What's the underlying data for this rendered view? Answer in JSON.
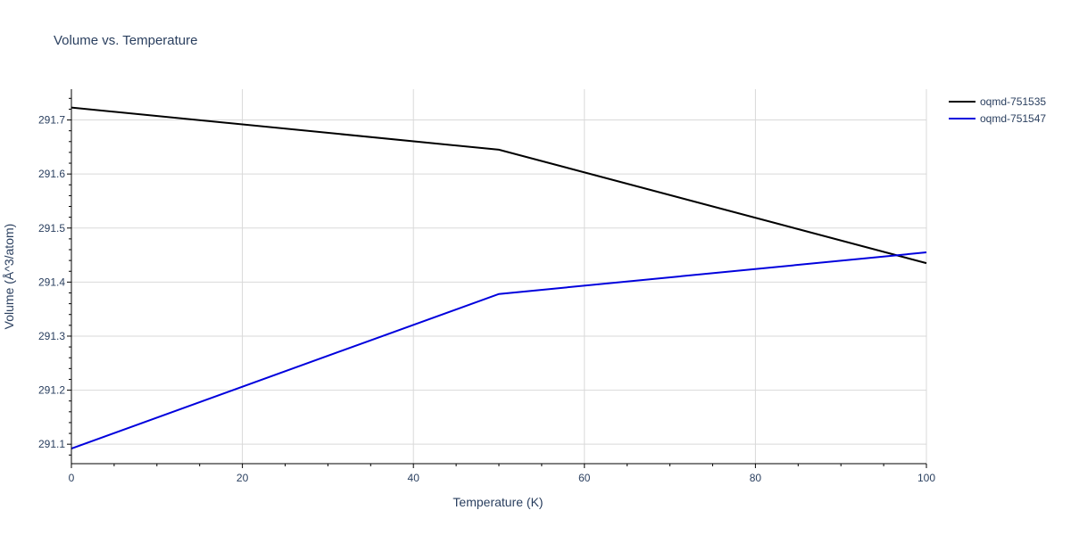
{
  "chart_data": {
    "type": "line",
    "title": "Volume vs. Temperature",
    "xlabel": "Temperature (K)",
    "ylabel": "Volume (Å^3/atom)",
    "xlim": [
      0,
      100
    ],
    "ylim": [
      291.064,
      291.757
    ],
    "x_ticks": [
      0,
      20,
      40,
      60,
      80,
      100
    ],
    "x_tick_labels": [
      "0",
      "20",
      "40",
      "60",
      "80",
      "100"
    ],
    "y_ticks": [
      291.1,
      291.2,
      291.3,
      291.4,
      291.5,
      291.6,
      291.7
    ],
    "y_tick_labels": [
      "291.1",
      "291.2",
      "291.3",
      "291.4",
      "291.5",
      "291.6",
      "291.7"
    ],
    "grid": true,
    "legend_position": "top-right",
    "series": [
      {
        "name": "oqmd-751535",
        "color": "#000000",
        "x": [
          0,
          50,
          100
        ],
        "y": [
          291.723,
          291.645,
          291.435
        ]
      },
      {
        "name": "oqmd-751547",
        "color": "#0000dd",
        "x": [
          0,
          50,
          100
        ],
        "y": [
          291.092,
          291.378,
          291.455
        ]
      }
    ]
  }
}
